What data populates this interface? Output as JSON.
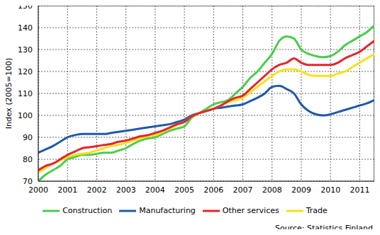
{
  "chart_data": {
    "type": "line",
    "y_label": "Index (2005=100)",
    "source": "Source: Statistics Finland",
    "x": [
      2000,
      2000.25,
      2000.5,
      2000.75,
      2001,
      2001.25,
      2001.5,
      2001.75,
      2002,
      2002.25,
      2002.5,
      2002.75,
      2003,
      2003.25,
      2003.5,
      2003.75,
      2004,
      2004.25,
      2004.5,
      2004.75,
      2005,
      2005.25,
      2005.5,
      2005.75,
      2006,
      2006.25,
      2006.5,
      2006.75,
      2007,
      2007.25,
      2007.5,
      2007.75,
      2008,
      2008.25,
      2008.5,
      2008.75,
      2009,
      2009.25,
      2009.5,
      2009.75,
      2010,
      2010.25,
      2010.5,
      2010.75,
      2011,
      2011.25,
      2011.5
    ],
    "series": [
      {
        "name": "Manufacturing",
        "color": "#1f5aa6",
        "values": [
          83,
          84.5,
          86,
          88,
          90,
          91,
          91.5,
          91.5,
          91.5,
          91.5,
          92,
          92.5,
          93,
          93.5,
          94,
          94.5,
          95,
          95.5,
          96,
          97,
          98,
          100,
          101,
          102,
          103,
          103.5,
          104,
          104.5,
          105,
          106.5,
          108,
          110,
          113,
          113.5,
          112,
          110,
          105,
          102,
          100.5,
          100,
          100.5,
          101.5,
          102.5,
          103.5,
          104.5,
          105.5,
          107
        ]
      },
      {
        "name": "Construction",
        "color": "#4ccb4c",
        "values": [
          70,
          73,
          75,
          77,
          80,
          81,
          82,
          82,
          82.5,
          83,
          83,
          84,
          85,
          87,
          88.5,
          89.5,
          90,
          91.5,
          93,
          94,
          95,
          99,
          101,
          103,
          105,
          106,
          107,
          110,
          113,
          117,
          120,
          124,
          128,
          134,
          136,
          135,
          130,
          128,
          127,
          126.5,
          127,
          129,
          132,
          134,
          136,
          138,
          141
        ]
      },
      {
        "name": "Trade",
        "color": "#f7e11b",
        "values": [
          74,
          76,
          78,
          79.5,
          81,
          82,
          82.5,
          83,
          84,
          85,
          86,
          86.5,
          87.5,
          88.5,
          89.5,
          90.5,
          91,
          92.5,
          94,
          95.5,
          97,
          99.5,
          101,
          102,
          103,
          104.5,
          106,
          107,
          108,
          110.5,
          113,
          115.5,
          118,
          120,
          121,
          121,
          120,
          118.5,
          118,
          118,
          118,
          119,
          120,
          122,
          124,
          126,
          128
        ]
      },
      {
        "name": "Other services",
        "color": "#e3262b",
        "values": [
          75,
          77,
          78,
          80,
          82,
          83.5,
          85,
          85.5,
          86,
          86.5,
          87,
          88,
          88.5,
          89.5,
          90.5,
          91,
          92,
          93,
          94.5,
          96,
          97,
          99.5,
          101,
          102,
          103,
          104.5,
          106.5,
          108,
          109,
          112,
          115,
          118,
          121,
          123,
          124,
          126,
          124,
          123,
          123,
          123,
          123,
          124,
          126,
          127.5,
          129,
          131.5,
          134
        ]
      }
    ],
    "xlim": [
      2000,
      2011.5
    ],
    "xticks": [
      2000,
      2001,
      2002,
      2003,
      2004,
      2005,
      2006,
      2007,
      2008,
      2009,
      2010,
      2011
    ],
    "ylim": [
      70,
      150
    ],
    "yticks": [
      70,
      80,
      90,
      100,
      110,
      120,
      130,
      140,
      150
    ],
    "grid": true,
    "legend": "bottom"
  }
}
